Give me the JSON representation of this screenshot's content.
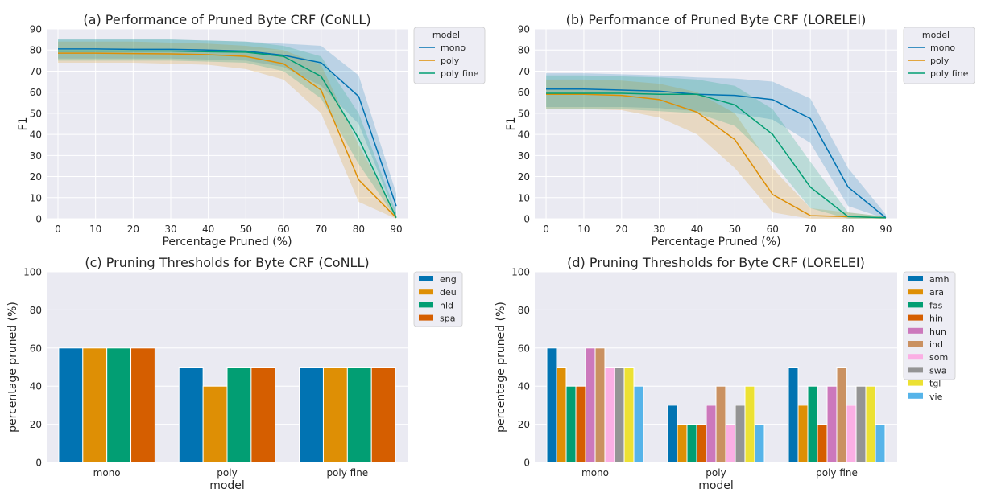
{
  "palette": {
    "panel_bg": "#EAEAF2",
    "grid": "#FFFFFF",
    "series_colors": [
      "#0173B2",
      "#DE8F05",
      "#029E73",
      "#D55E00",
      "#CC78BC",
      "#CA9161",
      "#FBAFE4",
      "#949494",
      "#ECE133",
      "#56B4E9"
    ]
  },
  "chart_data": [
    {
      "id": "a",
      "type": "line",
      "title": "(a) Performance of Pruned Byte CRF (CoNLL)",
      "xlabel": "Percentage Pruned (%)",
      "ylabel": "F1",
      "x": [
        0,
        10,
        20,
        30,
        40,
        50,
        60,
        70,
        80,
        90
      ],
      "xlim": [
        -3,
        93
      ],
      "ylim": [
        0,
        90
      ],
      "xticks": [
        "0",
        "10",
        "20",
        "30",
        "40",
        "50",
        "60",
        "70",
        "80",
        "90"
      ],
      "yticks": [
        "0",
        "10",
        "20",
        "30",
        "40",
        "50",
        "60",
        "70",
        "80",
        "90"
      ],
      "grid": true,
      "legend": {
        "title": "model",
        "position": "outside-right"
      },
      "series": [
        {
          "name": "mono",
          "values": [
            80.5,
            80.5,
            80.3,
            80.3,
            80,
            79.5,
            77.5,
            74,
            58,
            6
          ],
          "band": [
            [
              85,
              76
            ],
            [
              85,
              76
            ],
            [
              85,
              76
            ],
            [
              85,
              76
            ],
            [
              84.5,
              75.5
            ],
            [
              84,
              75
            ],
            [
              83,
              72
            ],
            [
              82,
              63
            ],
            [
              68,
              45
            ],
            [
              12,
              1
            ]
          ]
        },
        {
          "name": "poly",
          "values": [
            78.5,
            78.5,
            78.3,
            78.2,
            77.8,
            77,
            73.5,
            61,
            18.5,
            0.5
          ],
          "band": [
            [
              84,
              74
            ],
            [
              84,
              74
            ],
            [
              84,
              74
            ],
            [
              83.5,
              73.5
            ],
            [
              83,
              73
            ],
            [
              82,
              71
            ],
            [
              80,
              66
            ],
            [
              73,
              50
            ],
            [
              35,
              8
            ],
            [
              2,
              0
            ]
          ]
        },
        {
          "name": "poly fine",
          "values": [
            79.5,
            79.5,
            79.5,
            79.5,
            79.2,
            79,
            77,
            67.5,
            38,
            0.5
          ],
          "band": [
            [
              85,
              75
            ],
            [
              85,
              75
            ],
            [
              85,
              75
            ],
            [
              85,
              75
            ],
            [
              84.5,
              74.5
            ],
            [
              84,
              74
            ],
            [
              82,
              70
            ],
            [
              77,
              57
            ],
            [
              50,
              26
            ],
            [
              3,
              0
            ]
          ]
        }
      ]
    },
    {
      "id": "b",
      "type": "line",
      "title": "(b) Performance of Pruned Byte CRF (LORELEI)",
      "xlabel": "Percentage Pruned (%)",
      "ylabel": "F1",
      "x": [
        0,
        10,
        20,
        30,
        40,
        50,
        60,
        70,
        80,
        90
      ],
      "xlim": [
        -3,
        93
      ],
      "ylim": [
        0,
        90
      ],
      "xticks": [
        "0",
        "10",
        "20",
        "30",
        "40",
        "50",
        "60",
        "70",
        "80",
        "90"
      ],
      "yticks": [
        "0",
        "10",
        "20",
        "30",
        "40",
        "50",
        "60",
        "70",
        "80",
        "90"
      ],
      "grid": true,
      "legend": {
        "title": "model",
        "position": "outside-right"
      },
      "series": [
        {
          "name": "mono",
          "values": [
            61.5,
            61.5,
            61,
            60.5,
            59,
            58.5,
            56.5,
            47.5,
            15,
            0.5
          ],
          "band": [
            [
              69,
              53
            ],
            [
              69,
              53
            ],
            [
              68.5,
              53
            ],
            [
              68,
              52.5
            ],
            [
              67,
              51
            ],
            [
              66.5,
              50
            ],
            [
              65,
              47
            ],
            [
              57,
              36
            ],
            [
              24,
              6
            ],
            [
              2,
              0
            ]
          ]
        },
        {
          "name": "poly",
          "values": [
            59,
            59,
            58.5,
            56.5,
            50.5,
            37.5,
            11.5,
            1.5,
            1,
            0.5
          ],
          "band": [
            [
              66,
              52
            ],
            [
              66,
              52
            ],
            [
              65.5,
              51.5
            ],
            [
              64,
              48
            ],
            [
              60,
              40
            ],
            [
              50,
              24
            ],
            [
              24,
              3
            ],
            [
              5,
              0
            ],
            [
              3,
              0
            ],
            [
              1,
              0
            ]
          ]
        },
        {
          "name": "poly fine",
          "values": [
            59.5,
            59.5,
            59.5,
            59,
            59,
            54,
            40,
            15,
            1,
            0.5
          ],
          "band": [
            [
              68,
              52
            ],
            [
              68,
              52
            ],
            [
              67.5,
              52
            ],
            [
              67,
              51
            ],
            [
              66,
              50
            ],
            [
              63,
              44
            ],
            [
              52,
              27
            ],
            [
              27,
              5
            ],
            [
              3,
              0
            ],
            [
              1,
              0
            ]
          ]
        }
      ]
    },
    {
      "id": "c",
      "type": "bar",
      "title": "(c) Pruning Thresholds for Byte CRF (CoNLL)",
      "xlabel": "model",
      "ylabel": "percentage pruned (%)",
      "categories": [
        "mono",
        "poly",
        "poly fine"
      ],
      "ylim": [
        0,
        100
      ],
      "yticks": [
        "0",
        "20",
        "40",
        "60",
        "80",
        "100"
      ],
      "grid": true,
      "legend": {
        "position": "outside-right"
      },
      "series": [
        {
          "name": "eng",
          "values": [
            60,
            50,
            50
          ]
        },
        {
          "name": "deu",
          "values": [
            60,
            40,
            50
          ]
        },
        {
          "name": "nld",
          "values": [
            60,
            50,
            50
          ]
        },
        {
          "name": "spa",
          "values": [
            60,
            50,
            50
          ]
        }
      ]
    },
    {
      "id": "d",
      "type": "bar",
      "title": "(d) Pruning Thresholds for Byte CRF (LORELEI)",
      "xlabel": "model",
      "ylabel": "percentage pruned (%)",
      "categories": [
        "mono",
        "poly",
        "poly fine"
      ],
      "ylim": [
        0,
        100
      ],
      "yticks": [
        "0",
        "20",
        "40",
        "60",
        "80",
        "100"
      ],
      "grid": true,
      "legend": {
        "position": "outside-right"
      },
      "series": [
        {
          "name": "amh",
          "values": [
            60,
            30,
            50
          ]
        },
        {
          "name": "ara",
          "values": [
            50,
            20,
            30
          ]
        },
        {
          "name": "fas",
          "values": [
            40,
            20,
            40
          ]
        },
        {
          "name": "hin",
          "values": [
            40,
            20,
            20
          ]
        },
        {
          "name": "hun",
          "values": [
            60,
            30,
            40
          ]
        },
        {
          "name": "ind",
          "values": [
            60,
            40,
            50
          ]
        },
        {
          "name": "som",
          "values": [
            50,
            20,
            30
          ]
        },
        {
          "name": "swa",
          "values": [
            50,
            30,
            40
          ]
        },
        {
          "name": "tgl",
          "values": [
            50,
            40,
            40
          ]
        },
        {
          "name": "vie",
          "values": [
            40,
            20,
            20
          ]
        }
      ]
    }
  ]
}
